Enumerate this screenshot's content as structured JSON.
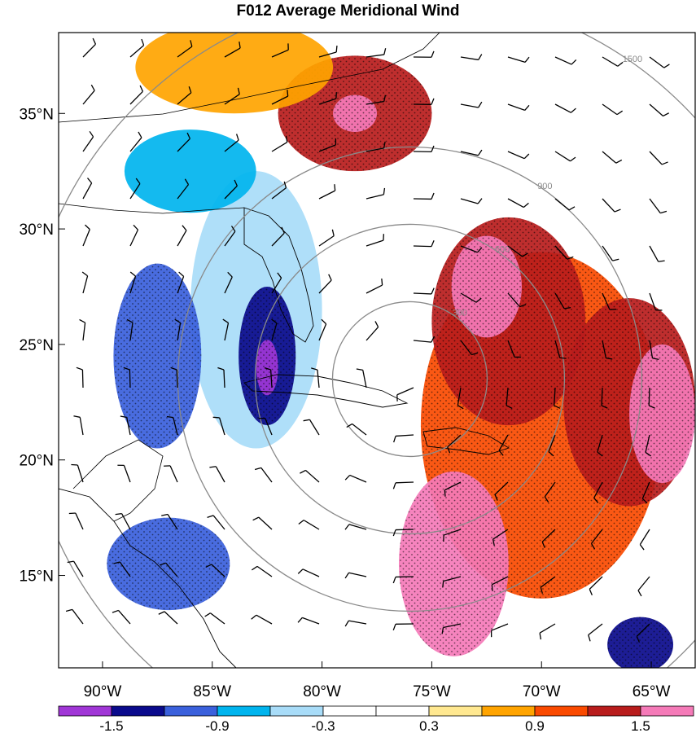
{
  "title": "F012 Average Meridional Wind",
  "map": {
    "lon_range": [
      -92,
      -63
    ],
    "lat_range": [
      11,
      38.5
    ],
    "lat_ticks": [
      {
        "value": 35,
        "label": "35°N"
      },
      {
        "value": 30,
        "label": "30°N"
      },
      {
        "value": 25,
        "label": "25°N"
      },
      {
        "value": 20,
        "label": "20°N"
      },
      {
        "value": 15,
        "label": "15°N"
      }
    ],
    "lon_ticks": [
      {
        "value": -90,
        "label": "90°W"
      },
      {
        "value": -85,
        "label": "85°W"
      },
      {
        "value": -80,
        "label": "80°W"
      },
      {
        "value": -75,
        "label": "75°W"
      },
      {
        "value": -70,
        "label": "70°W"
      },
      {
        "value": -65,
        "label": "65°W"
      }
    ],
    "storm_center": {
      "lon": -76.0,
      "lat": 23.5
    },
    "range_rings": [
      {
        "value": 300,
        "label": "300"
      },
      {
        "value": 600,
        "label": "600"
      },
      {
        "value": 900,
        "label": "900"
      },
      {
        "value": 1500,
        "label": "1500"
      }
    ],
    "shading": [
      {
        "lon": -70.0,
        "lat": 21.5,
        "rx": 5.5,
        "ry": 7.5,
        "level": 0.9
      },
      {
        "lon": -71.5,
        "lat": 26.0,
        "rx": 3.5,
        "ry": 4.5,
        "level": 1.2
      },
      {
        "lon": -72.5,
        "lat": 27.5,
        "rx": 1.6,
        "ry": 2.2,
        "level": 1.8
      },
      {
        "lon": -74.0,
        "lat": 15.5,
        "rx": 2.5,
        "ry": 4.0,
        "level": 1.8
      },
      {
        "lon": -66.0,
        "lat": 22.5,
        "rx": 3.0,
        "ry": 4.5,
        "level": 1.2
      },
      {
        "lon": -64.5,
        "lat": 22.0,
        "rx": 1.5,
        "ry": 3.0,
        "level": 1.8
      },
      {
        "lon": -78.5,
        "lat": 35.0,
        "rx": 3.5,
        "ry": 2.5,
        "level": 1.2
      },
      {
        "lon": -78.5,
        "lat": 35.0,
        "rx": 1.0,
        "ry": 0.8,
        "level": 1.8
      },
      {
        "lon": -84.0,
        "lat": 37.0,
        "rx": 4.5,
        "ry": 2.0,
        "level": 0.6
      },
      {
        "lon": -83.0,
        "lat": 26.5,
        "rx": 3.0,
        "ry": 6.0,
        "level": -0.6
      },
      {
        "lon": -82.5,
        "lat": 24.5,
        "rx": 1.3,
        "ry": 3.0,
        "level": -1.3
      },
      {
        "lon": -82.5,
        "lat": 24.0,
        "rx": 0.5,
        "ry": 1.2,
        "level": -1.8
      },
      {
        "lon": -87.5,
        "lat": 24.5,
        "rx": 2.0,
        "ry": 4.0,
        "level": -1.0
      },
      {
        "lon": -87.0,
        "lat": 15.5,
        "rx": 2.8,
        "ry": 2.0,
        "level": -1.0
      },
      {
        "lon": -86.0,
        "lat": 32.5,
        "rx": 3.0,
        "ry": 1.8,
        "level": -0.7
      },
      {
        "lon": -65.5,
        "lat": 12.0,
        "rx": 1.5,
        "ry": 1.2,
        "level": -1.3
      }
    ]
  },
  "colorbar": {
    "colors": [
      "#a036d6",
      "#0a0a8c",
      "#3a60dc",
      "#00b4ee",
      "#a8dcf8",
      "#ffffff",
      "#ffffff",
      "#ffe890",
      "#ffa400",
      "#fa4a00",
      "#b81c1c",
      "#f57ab8"
    ],
    "labels": [
      {
        "value": -1.5,
        "label": "-1.5"
      },
      {
        "value": -0.9,
        "label": "-0.9"
      },
      {
        "value": -0.3,
        "label": "-0.3"
      },
      {
        "value": 0.3,
        "label": "0.3"
      },
      {
        "value": 0.9,
        "label": "0.9"
      },
      {
        "value": 1.5,
        "label": "1.5"
      }
    ]
  }
}
